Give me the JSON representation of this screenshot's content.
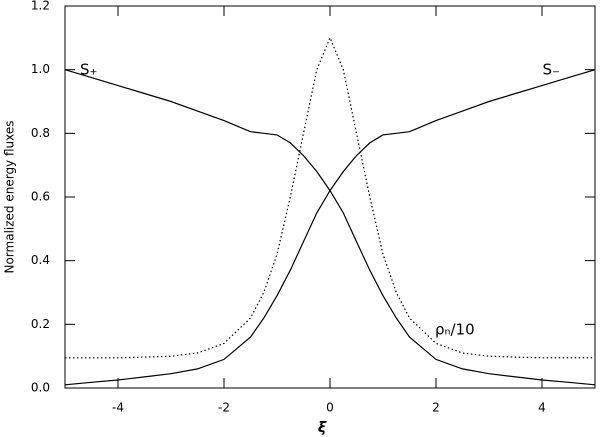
{
  "chart_data": {
    "type": "line",
    "xlabel": "ξ",
    "ylabel": "Normalized energy fluxes",
    "x": [
      -5,
      -4.5,
      -4,
      -3.5,
      -3,
      -2.5,
      -2,
      -1.5,
      -1.25,
      -1,
      -0.75,
      -0.5,
      -0.25,
      0,
      0.25,
      0.5,
      0.75,
      1,
      1.25,
      1.5,
      2,
      2.5,
      3,
      3.5,
      4,
      4.5,
      5
    ],
    "series": [
      {
        "name": "S₊",
        "color": "#000000",
        "dash": "solid",
        "values": [
          1.0,
          0.975,
          0.95,
          0.925,
          0.9,
          0.87,
          0.84,
          0.805,
          0.8,
          0.795,
          0.77,
          0.73,
          0.68,
          0.62,
          0.55,
          0.46,
          0.37,
          0.29,
          0.22,
          0.16,
          0.09,
          0.06,
          0.045,
          0.035,
          0.025,
          0.018,
          0.01
        ]
      },
      {
        "name": "S₋",
        "color": "#000000",
        "dash": "solid",
        "values": [
          0.01,
          0.018,
          0.025,
          0.035,
          0.045,
          0.06,
          0.09,
          0.16,
          0.22,
          0.29,
          0.37,
          0.46,
          0.55,
          0.62,
          0.68,
          0.73,
          0.77,
          0.795,
          0.8,
          0.805,
          0.84,
          0.87,
          0.9,
          0.925,
          0.95,
          0.975,
          1.0
        ]
      },
      {
        "name": "ρₙ/10",
        "color": "#000000",
        "dash": "dotted",
        "values": [
          0.095,
          0.095,
          0.095,
          0.097,
          0.1,
          0.11,
          0.14,
          0.22,
          0.3,
          0.42,
          0.6,
          0.8,
          1.0,
          1.1,
          1.0,
          0.8,
          0.6,
          0.42,
          0.3,
          0.22,
          0.14,
          0.11,
          0.1,
          0.097,
          0.095,
          0.095,
          0.095
        ]
      }
    ],
    "xlim": [
      -5,
      5
    ],
    "xticks": [
      -4,
      -2,
      0,
      2,
      4
    ],
    "ylim": [
      0,
      1.2
    ],
    "yticks": [
      {
        "value": 0,
        "label": "0.0"
      },
      0.2,
      0.4,
      0.6,
      0.8,
      {
        "value": 1,
        "label": "1.0"
      },
      1.2
    ],
    "grid": false
  }
}
